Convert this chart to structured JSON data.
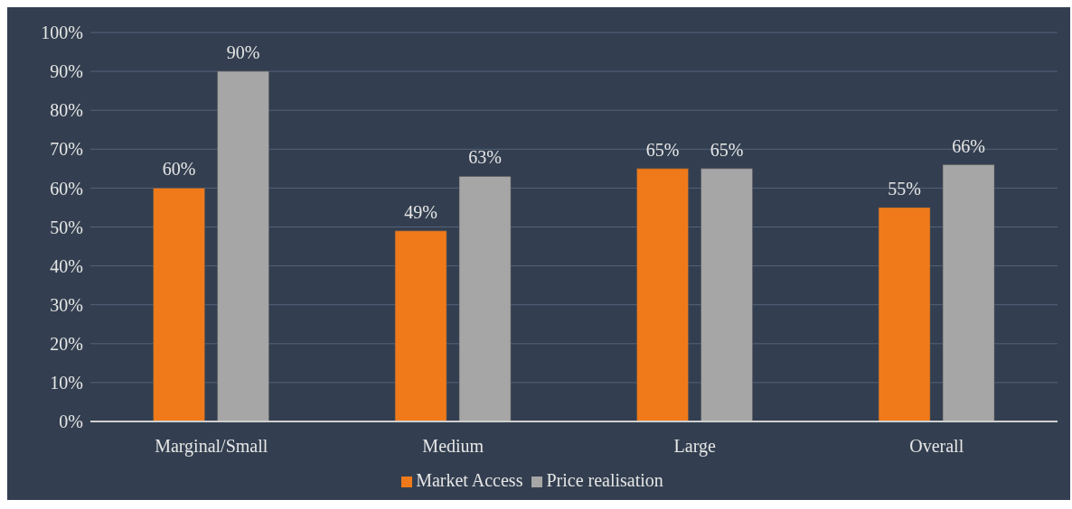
{
  "chart_data": {
    "type": "bar",
    "categories": [
      "Marginal/Small",
      "Medium",
      "Large",
      "Overall"
    ],
    "series": [
      {
        "name": "Market Access",
        "color": "#f07a1a",
        "values": [
          60,
          49,
          65,
          55
        ],
        "value_labels": [
          "60%",
          "49%",
          "65%",
          "55%"
        ]
      },
      {
        "name": "Price realisation",
        "color": "#a6a6a6",
        "values": [
          90,
          63,
          65,
          66
        ],
        "value_labels": [
          "90%",
          "63%",
          "65%",
          "66%"
        ]
      }
    ],
    "ylim": [
      0,
      100
    ],
    "yticks": [
      {
        "value": 0,
        "label": "0%"
      },
      {
        "value": 10,
        "label": "10%"
      },
      {
        "value": 20,
        "label": "20%"
      },
      {
        "value": 30,
        "label": "30%"
      },
      {
        "value": 40,
        "label": "40%"
      },
      {
        "value": 50,
        "label": "50%"
      },
      {
        "value": 60,
        "label": "60%"
      },
      {
        "value": 70,
        "label": "70%"
      },
      {
        "value": 80,
        "label": "80%"
      },
      {
        "value": 90,
        "label": "90%"
      },
      {
        "value": 100,
        "label": "100%"
      }
    ],
    "grid": "y",
    "legend": "bottom"
  }
}
